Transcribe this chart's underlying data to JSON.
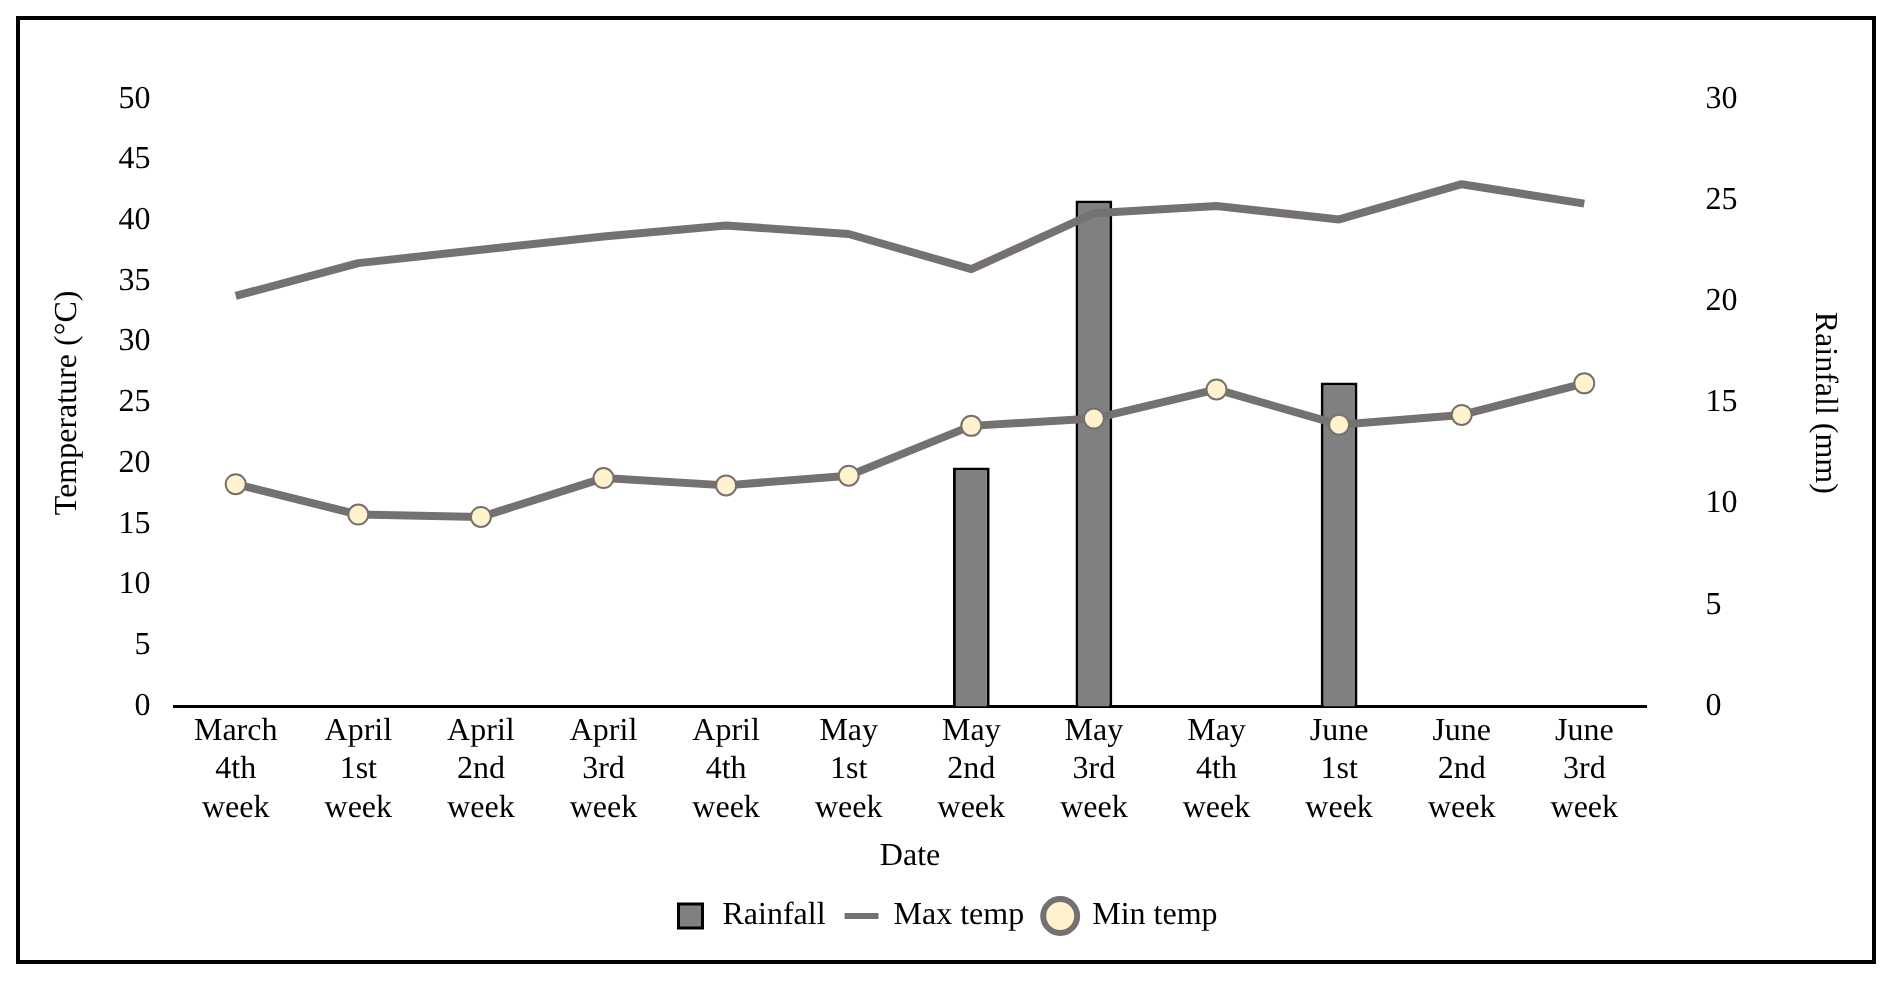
{
  "chart_data": {
    "type": "line",
    "xlabel": "Date",
    "ylabel": "Temperature (°C)",
    "y2label": "Rainfall (mm)",
    "categories": [
      "March 4th week",
      "April 1st week",
      "April 2nd week",
      "April 3rd week",
      "April 4th week",
      "May 1st week",
      "May 2nd week",
      "May 3rd week",
      "May 4th week",
      "June 1st week",
      "June 2nd week",
      "June 3rd week"
    ],
    "series": [
      {
        "name": "Rainfall",
        "type": "bar",
        "axis": "y2",
        "color": "#808080",
        "values": [
          0,
          0,
          0,
          0,
          0,
          0,
          11.8,
          25.0,
          0,
          16.0,
          0,
          0
        ]
      },
      {
        "name": "Max temp",
        "marker": "none",
        "color": "#767171",
        "values": [
          33.8,
          36.5,
          37.6,
          38.7,
          39.6,
          38.9,
          36.0,
          40.6,
          41.2,
          40.1,
          43.0,
          41.4
        ]
      },
      {
        "name": "Min temp",
        "marker": "circle",
        "color": "#767171",
        "values": [
          18.3,
          15.8,
          15.6,
          18.8,
          18.2,
          19.0,
          23.1,
          23.7,
          26.1,
          23.2,
          24.0,
          26.6
        ]
      }
    ],
    "ylim": [
      0,
      50
    ],
    "yticks": [
      0,
      5,
      10,
      15,
      20,
      25,
      30,
      35,
      40,
      45,
      50
    ],
    "y2lim": [
      0,
      30
    ],
    "y2ticks": [
      0,
      5,
      10,
      15,
      20,
      25,
      30
    ],
    "grid": false,
    "legend": "bottom"
  }
}
